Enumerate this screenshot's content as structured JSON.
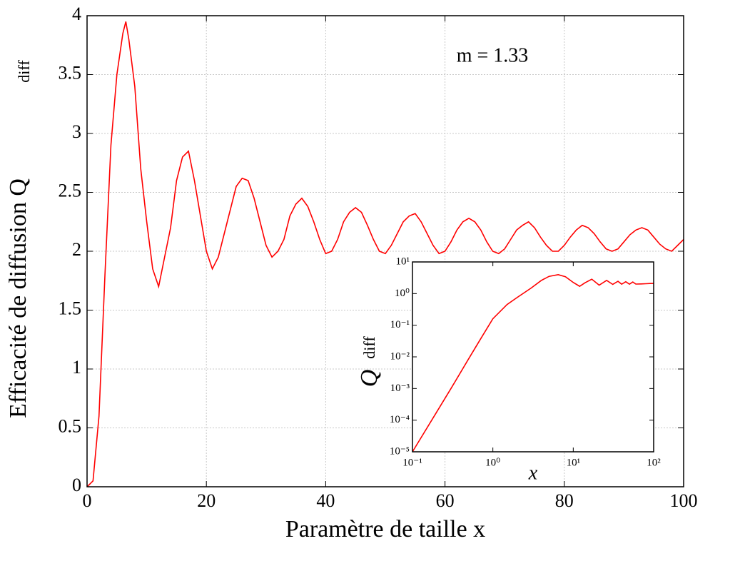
{
  "chart_data": [
    {
      "type": "line",
      "xlabel": "Paramètre de taille x",
      "ylabel": "Efficacité de diffusion Q",
      "ylabel_subscript": "diff",
      "annotation": "m = 1.33",
      "xlim": [
        0,
        100
      ],
      "ylim": [
        0,
        4
      ],
      "xticks": [
        0,
        20,
        40,
        60,
        80,
        100
      ],
      "yticks": [
        0,
        0.5,
        1,
        1.5,
        2,
        2.5,
        3,
        3.5,
        4
      ],
      "grid": true,
      "series": [
        {
          "color": "#ff0000",
          "x": [
            0,
            1,
            2,
            3,
            4,
            5,
            6,
            6.5,
            7,
            8,
            9,
            10,
            11,
            12,
            13,
            14,
            15,
            16,
            17,
            18,
            19,
            20,
            21,
            22,
            23,
            24,
            25,
            26,
            27,
            28,
            29,
            30,
            31,
            32,
            33,
            34,
            35,
            36,
            37,
            38,
            39,
            40,
            41,
            42,
            43,
            44,
            45,
            46,
            47,
            48,
            49,
            50,
            51,
            52,
            53,
            54,
            55,
            56,
            57,
            58,
            59,
            60,
            61,
            62,
            63,
            64,
            65,
            66,
            67,
            68,
            69,
            70,
            71,
            72,
            73,
            74,
            75,
            76,
            77,
            78,
            79,
            80,
            81,
            82,
            83,
            84,
            85,
            86,
            87,
            88,
            89,
            90,
            91,
            92,
            93,
            94,
            95,
            96,
            97,
            98,
            99,
            100
          ],
          "values": [
            0,
            0.05,
            0.6,
            1.8,
            2.9,
            3.5,
            3.85,
            3.95,
            3.8,
            3.4,
            2.7,
            2.25,
            1.85,
            1.7,
            1.95,
            2.2,
            2.6,
            2.8,
            2.85,
            2.6,
            2.3,
            2.0,
            1.85,
            1.95,
            2.15,
            2.35,
            2.55,
            2.62,
            2.6,
            2.45,
            2.25,
            2.05,
            1.95,
            2.0,
            2.1,
            2.3,
            2.4,
            2.45,
            2.38,
            2.25,
            2.1,
            1.98,
            2.0,
            2.1,
            2.25,
            2.33,
            2.37,
            2.33,
            2.22,
            2.1,
            2.0,
            1.98,
            2.05,
            2.15,
            2.25,
            2.3,
            2.32,
            2.25,
            2.15,
            2.05,
            1.98,
            2.0,
            2.08,
            2.18,
            2.25,
            2.28,
            2.25,
            2.18,
            2.08,
            2.0,
            1.98,
            2.02,
            2.1,
            2.18,
            2.22,
            2.25,
            2.2,
            2.12,
            2.05,
            2.0,
            2.0,
            2.05,
            2.12,
            2.18,
            2.22,
            2.2,
            2.15,
            2.08,
            2.02,
            2.0,
            2.02,
            2.08,
            2.14,
            2.18,
            2.2,
            2.18,
            2.12,
            2.06,
            2.02,
            2.0,
            2.05,
            2.1
          ]
        }
      ]
    },
    {
      "type": "line",
      "xlabel": "x",
      "ylabel": "Q",
      "ylabel_subscript": "diff",
      "xscale": "log",
      "yscale": "log",
      "xlim": [
        0.1,
        100
      ],
      "ylim": [
        1e-05,
        10
      ],
      "xticks": [
        {
          "value": 0.1,
          "label": "10⁻¹"
        },
        {
          "value": 1,
          "label": "10⁰"
        },
        {
          "value": 10,
          "label": "10¹"
        },
        {
          "value": 100,
          "label": "10²"
        }
      ],
      "yticks": [
        {
          "value": 1e-05,
          "label": "10⁻⁵"
        },
        {
          "value": 0.0001,
          "label": "10⁻⁴"
        },
        {
          "value": 0.001,
          "label": "10⁻³"
        },
        {
          "value": 0.01,
          "label": "10⁻²"
        },
        {
          "value": 0.1,
          "label": "10⁻¹"
        },
        {
          "value": 1,
          "label": "10⁰"
        },
        {
          "value": 10,
          "label": "10¹"
        }
      ],
      "grid": false,
      "series": [
        {
          "color": "#ff0000",
          "x": [
            0.1,
            0.2,
            0.3,
            0.5,
            0.7,
            1,
            1.5,
            2,
            3,
            4,
            5,
            6.5,
            8,
            10,
            12,
            14,
            17,
            21,
            26,
            31,
            36,
            40,
            45,
            50,
            55,
            60,
            70,
            80,
            90,
            100
          ],
          "values": [
            1e-05,
            0.00018,
            0.00098,
            0.0087,
            0.036,
            0.16,
            0.45,
            0.75,
            1.5,
            2.6,
            3.5,
            3.95,
            3.4,
            2.25,
            1.7,
            2.2,
            2.85,
            1.85,
            2.62,
            1.95,
            2.45,
            1.98,
            2.37,
            1.98,
            2.32,
            2.0,
            2.02,
            2.05,
            2.08,
            2.1
          ]
        }
      ]
    }
  ]
}
